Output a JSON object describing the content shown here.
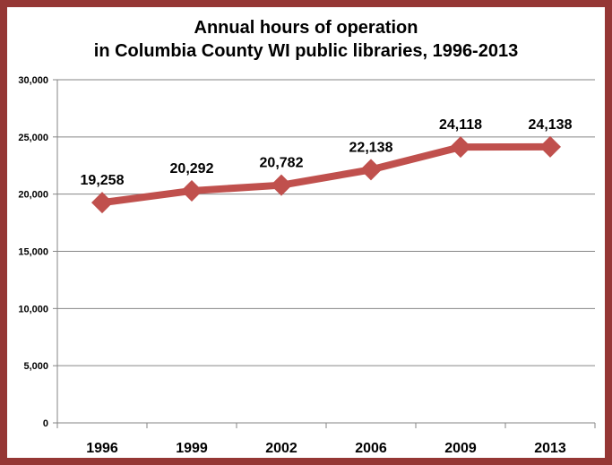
{
  "chart_data": {
    "type": "line",
    "title_line1": "Annual hours of operation",
    "title_line2": "in Columbia County WI public libraries, 1996-2013",
    "categories": [
      "1996",
      "1999",
      "2002",
      "2006",
      "2009",
      "2013"
    ],
    "values": [
      19258,
      20292,
      20782,
      22138,
      24118,
      24138
    ],
    "data_labels": [
      "19,258",
      "20,292",
      "20,782",
      "22,138",
      "24,118",
      "24,138"
    ],
    "yticks": [
      0,
      5000,
      10000,
      15000,
      20000,
      25000,
      30000
    ],
    "ytick_labels": [
      "0",
      "5,000",
      "10,000",
      "15,000",
      "20,000",
      "25,000",
      "30,000"
    ],
    "ylim": [
      0,
      30000
    ],
    "grid": true,
    "line_color": "#C0504D",
    "border_color": "#953735"
  }
}
